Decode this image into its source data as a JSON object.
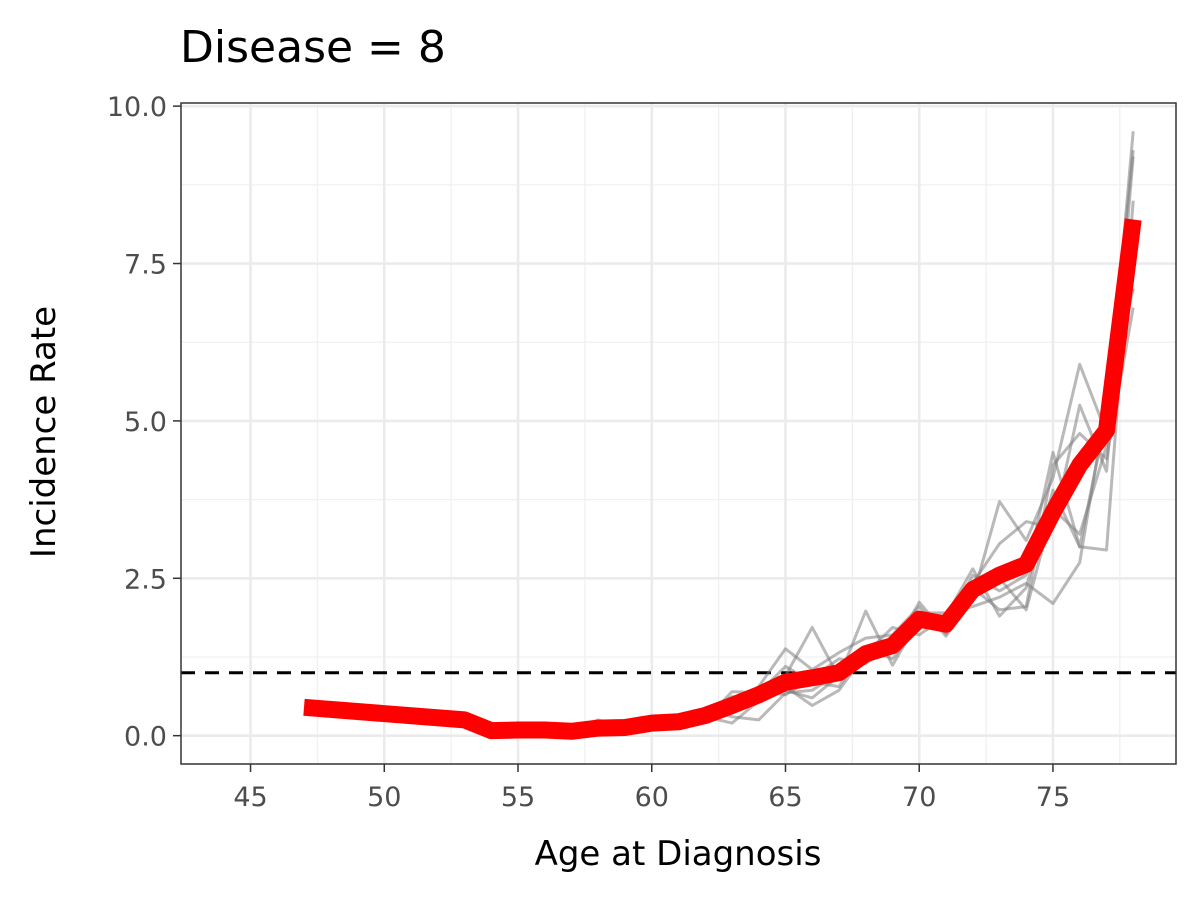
{
  "chart_data": {
    "type": "line",
    "title": "Disease = 8",
    "xlabel": "Age at Diagnosis",
    "ylabel": "Incidence Rate",
    "xlim": [
      42.4,
      79.6
    ],
    "ylim": [
      -0.45,
      10.05
    ],
    "x_ticks": [
      45,
      50,
      55,
      60,
      65,
      70,
      75
    ],
    "x_tick_labels": [
      "45",
      "50",
      "55",
      "60",
      "65",
      "70",
      "75"
    ],
    "y_ticks": [
      0,
      2.5,
      5,
      7.5,
      10
    ],
    "y_tick_labels": [
      "0.0",
      "2.5",
      "5.0",
      "7.5",
      "10.0"
    ],
    "grid": true,
    "reference_line": {
      "y": 1.0,
      "style": "dashed",
      "color": "#000000"
    },
    "main_series": {
      "color": "#ff0000",
      "x": [
        47,
        53,
        54,
        55,
        56,
        57,
        58,
        59,
        60,
        61,
        62,
        63,
        64,
        65,
        66,
        67,
        68,
        69,
        70,
        71,
        72,
        73,
        74,
        75,
        76,
        77,
        78
      ],
      "y": [
        0.45,
        0.25,
        0.08,
        0.09,
        0.09,
        0.07,
        0.12,
        0.13,
        0.2,
        0.22,
        0.32,
        0.48,
        0.65,
        0.85,
        0.92,
        1.0,
        1.3,
        1.43,
        1.85,
        1.77,
        2.32,
        2.55,
        2.72,
        3.55,
        4.3,
        4.85,
        8.2
      ]
    },
    "replicate_series": {
      "color": "#7f7f7f",
      "x": [
        57,
        58,
        59,
        60,
        61,
        62,
        63,
        64,
        65,
        66,
        67,
        68,
        69,
        70,
        71,
        72,
        73,
        74,
        75,
        76,
        77,
        78
      ],
      "series": [
        {
          "y": [
            0.08,
            0.25,
            0.14,
            0.18,
            0.3,
            0.28,
            0.4,
            0.78,
            1.38,
            1.05,
            1.32,
            1.55,
            1.6,
            2.05,
            1.58,
            2.2,
            3.72,
            3.1,
            4.1,
            5.9,
            4.8,
            9.6
          ]
        },
        {
          "y": [
            0.07,
            0.12,
            0.16,
            0.22,
            0.18,
            0.35,
            0.62,
            0.58,
            0.95,
            1.72,
            0.92,
            1.98,
            1.12,
            1.85,
            1.7,
            2.55,
            2.3,
            2.55,
            4.5,
            3.0,
            5.1,
            9.3
          ]
        },
        {
          "y": [
            0.1,
            0.15,
            0.12,
            0.15,
            0.26,
            0.38,
            0.5,
            0.72,
            0.65,
            0.92,
            1.22,
            1.15,
            1.42,
            1.95,
            1.95,
            2.05,
            2.2,
            2.42,
            2.1,
            2.75,
            5.3,
            7.1
          ]
        },
        {
          "y": [
            0.06,
            0.1,
            0.15,
            0.2,
            0.22,
            0.3,
            0.2,
            0.55,
            0.78,
            0.48,
            0.72,
            1.3,
            1.72,
            1.6,
            1.9,
            2.65,
            1.9,
            2.35,
            3.9,
            3.0,
            2.95,
            8.5
          ]
        },
        {
          "y": [
            0.09,
            0.18,
            0.1,
            0.22,
            0.12,
            0.42,
            0.3,
            0.25,
            0.68,
            0.72,
            1.0,
            1.2,
            1.35,
            2.12,
            1.62,
            2.35,
            2.0,
            2.05,
            4.3,
            4.8,
            4.4,
            6.8
          ]
        },
        {
          "y": [
            0.08,
            0.14,
            0.18,
            0.16,
            0.28,
            0.25,
            0.7,
            0.68,
            1.1,
            0.85,
            0.78,
            1.4,
            1.22,
            1.75,
            1.82,
            2.42,
            3.05,
            3.4,
            3.3,
            5.25,
            4.2,
            9.2
          ]
        },
        {
          "y": [
            0.07,
            0.16,
            0.14,
            0.19,
            0.24,
            0.33,
            0.45,
            0.62,
            0.72,
            0.6,
            0.95,
            1.25,
            1.5,
            1.9,
            1.65,
            2.3,
            2.5,
            2.0,
            3.6,
            3.2,
            4.6,
            8.0
          ]
        }
      ]
    }
  }
}
